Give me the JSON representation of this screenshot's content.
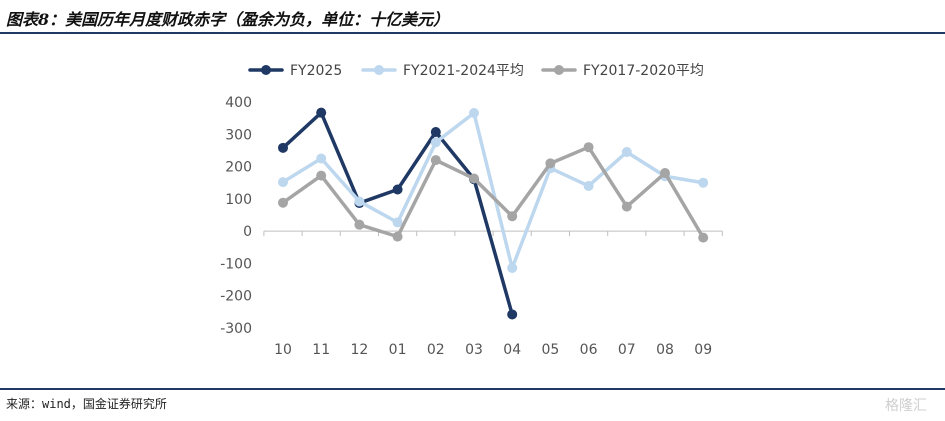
{
  "header": {
    "title": "图表8：美国历年月度财政赤字（盈余为负，单位：十亿美元）"
  },
  "footer": {
    "source": "来源：wind，国金证券研究所",
    "watermark": "格隆汇"
  },
  "colors": {
    "rule": "#1f3864",
    "axis": "#bfbfbf"
  },
  "chart_data": {
    "type": "line",
    "title": "",
    "xlabel": "",
    "ylabel": "",
    "categories": [
      "10",
      "11",
      "12",
      "01",
      "02",
      "03",
      "04",
      "05",
      "06",
      "07",
      "08",
      "09"
    ],
    "ylim": [
      -300,
      400
    ],
    "yticks": [
      400,
      300,
      200,
      100,
      0,
      -100,
      -200,
      -300
    ],
    "legend_position": "top",
    "series": [
      {
        "name": "FY2025",
        "color": "#1f3864",
        "values": [
          258,
          367,
          87,
          129,
          307,
          161,
          -258,
          null,
          null,
          null,
          null,
          null
        ]
      },
      {
        "name": "FY2021-2024平均",
        "color": "#bdd7ee",
        "values": [
          152,
          225,
          92,
          27,
          275,
          366,
          -114,
          195,
          140,
          245,
          170,
          150
        ]
      },
      {
        "name": "FY2017-2020平均",
        "color": "#a5a5a5",
        "values": [
          88,
          172,
          20,
          -17,
          220,
          163,
          46,
          210,
          260,
          76,
          180,
          -20
        ]
      }
    ]
  }
}
